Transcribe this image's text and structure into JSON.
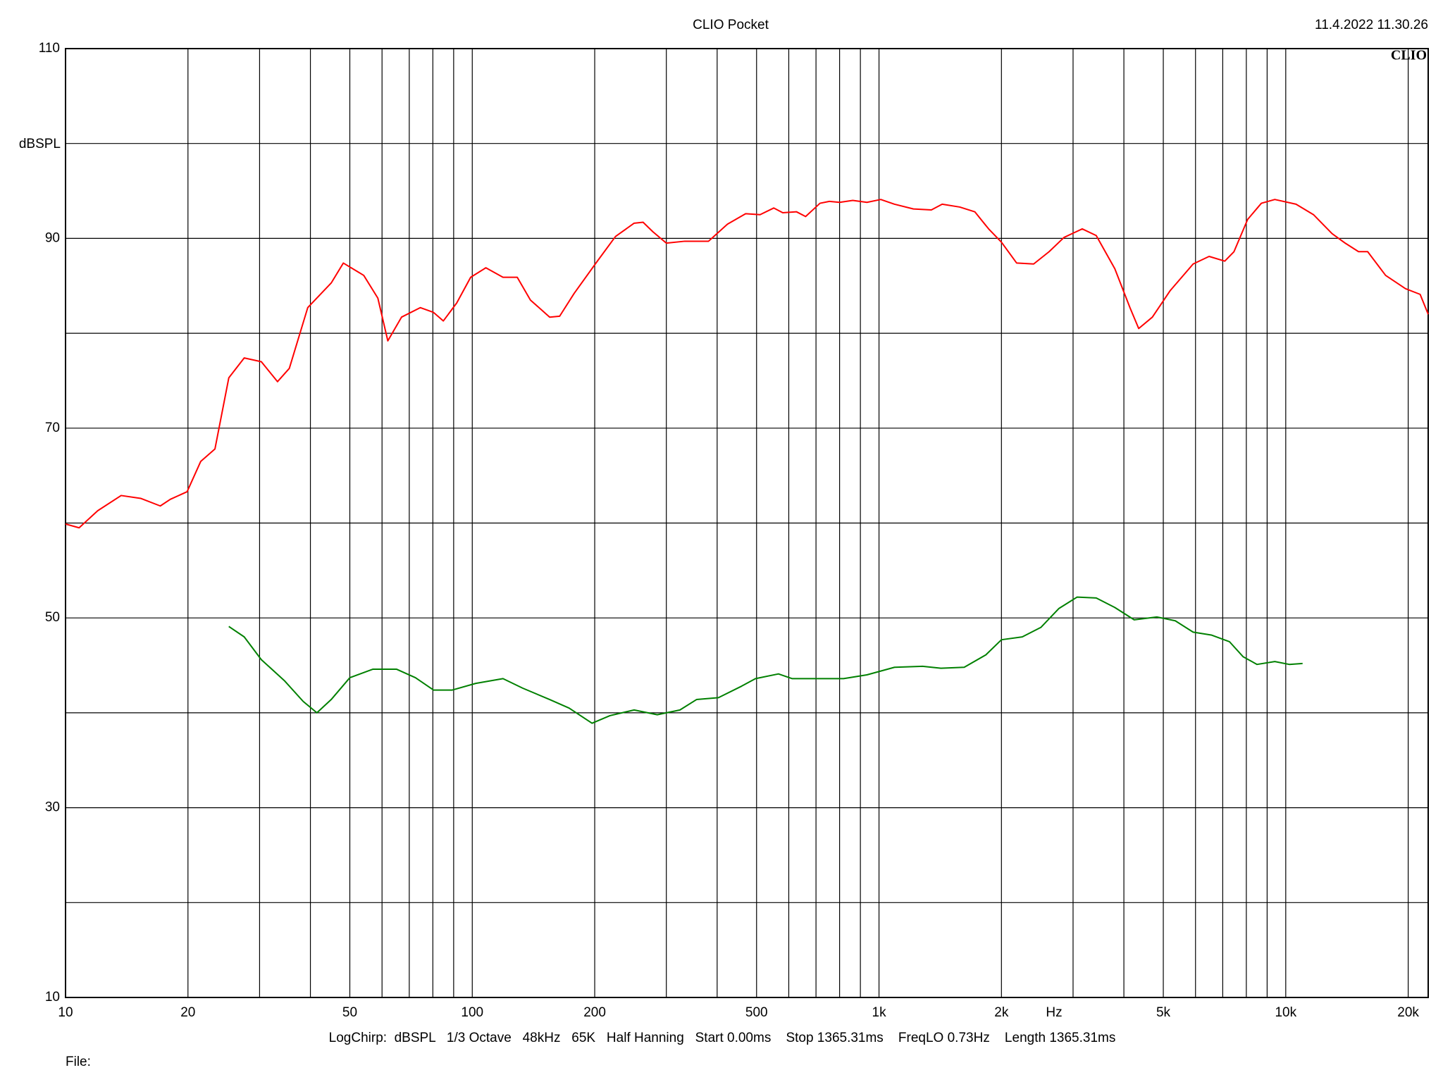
{
  "chart_data": {
    "type": "line",
    "title": "CLIO Pocket",
    "timestamp": "11.4.2022 11.30.26",
    "brand": "CLIO",
    "y_label": "dBSPL",
    "x_label": "Hz",
    "footer": "LogChirp:  dBSPL   1/3 Octave   48kHz   65K   Half Hanning   Start 0.00ms    Stop 1365.31ms    FreqLO 0.73Hz    Length 1365.31ms",
    "file_label": "File:",
    "log_x": true,
    "xlim": [
      10,
      22400
    ],
    "ylim": [
      10,
      110
    ],
    "xticks": [
      10,
      20,
      50,
      100,
      200,
      500,
      {
        "value": 1000,
        "label": "1k"
      },
      {
        "value": 2000,
        "label": "2k"
      },
      {
        "value": 5000,
        "label": "5k"
      },
      {
        "value": 10000,
        "label": "10k"
      },
      {
        "value": 20000,
        "label": "20k"
      }
    ],
    "xgrid": [
      30,
      40,
      60,
      70,
      80,
      90,
      300,
      400,
      600,
      700,
      800,
      900,
      3000,
      4000,
      6000,
      7000,
      8000,
      9000
    ],
    "yticks": [
      10,
      30,
      50,
      70,
      90,
      110
    ],
    "ygrid": [
      20,
      40,
      60,
      80,
      100
    ],
    "grid": true,
    "series": [
      {
        "color": "#ff0000",
        "x": [
          10,
          10.8,
          12.0,
          13.7,
          15.3,
          17.1,
          18.1,
          19.9,
          21.5,
          23.3,
          25.2,
          27.5,
          30.3,
          33.2,
          35.5,
          39.4,
          45.0,
          48.2,
          54.1,
          58.6,
          62.0,
          67.0,
          74.5,
          80.3,
          84.9,
          91.6,
          99.1,
          108,
          119,
          129,
          139,
          155,
          164,
          178,
          203,
          225,
          250,
          263,
          278,
          300,
          333,
          381,
          424,
          470,
          510,
          551,
          580,
          627,
          660,
          716,
          755,
          800,
          862,
          934,
          1010,
          1092,
          1215,
          1345,
          1430,
          1580,
          1720,
          1860,
          2000,
          2180,
          2400,
          2620,
          2850,
          3160,
          3420,
          3800,
          4140,
          4350,
          4700,
          5200,
          5920,
          6480,
          7080,
          7460,
          8060,
          8710,
          9400,
          10600,
          11700,
          13000,
          14000,
          15100,
          15900,
          17600,
          19700,
          21400,
          22400
        ],
        "values": [
          59.9,
          59.5,
          61.3,
          62.9,
          62.6,
          61.8,
          62.5,
          63.3,
          66.5,
          67.8,
          75.3,
          77.4,
          77.0,
          74.9,
          76.3,
          82.7,
          85.3,
          87.4,
          86.1,
          83.7,
          79.2,
          81.7,
          82.7,
          82.2,
          81.3,
          83.2,
          85.9,
          86.9,
          85.9,
          85.9,
          83.5,
          81.7,
          81.8,
          84.2,
          87.6,
          90.2,
          91.6,
          91.7,
          90.7,
          89.5,
          89.7,
          89.7,
          91.5,
          92.6,
          92.5,
          93.2,
          92.7,
          92.8,
          92.3,
          93.7,
          93.9,
          93.8,
          94.0,
          93.8,
          94.1,
          93.6,
          93.1,
          93.0,
          93.6,
          93.3,
          92.8,
          91.0,
          89.6,
          87.4,
          87.3,
          88.6,
          90.1,
          91.0,
          90.3,
          86.8,
          82.7,
          80.5,
          81.7,
          84.5,
          87.3,
          88.1,
          87.6,
          88.6,
          92.0,
          93.7,
          94.1,
          93.6,
          92.5,
          90.5,
          89.5,
          88.6,
          88.6,
          86.1,
          84.7,
          84.1,
          82.0
        ]
      },
      {
        "color": "#008000",
        "x": [
          25.2,
          27.5,
          30.3,
          34.5,
          38.4,
          41.5,
          45.0,
          50.0,
          57.0,
          65.1,
          72.5,
          80.3,
          89.3,
          102,
          119,
          133,
          155,
          173,
          197,
          218,
          250,
          285,
          324,
          356,
          403,
          459,
          497,
          566,
          612,
          716,
          818,
          934,
          1092,
          1280,
          1420,
          1620,
          1830,
          2000,
          2250,
          2500,
          2770,
          3070,
          3420,
          3800,
          4240,
          4820,
          5350,
          5920,
          6560,
          7270,
          7860,
          8500,
          9400,
          10200,
          11000
        ],
        "values": [
          49.1,
          48.0,
          45.6,
          43.4,
          41.2,
          40.0,
          41.4,
          43.7,
          44.6,
          44.6,
          43.7,
          42.4,
          42.4,
          43.1,
          43.6,
          42.6,
          41.4,
          40.5,
          38.9,
          39.7,
          40.3,
          39.8,
          40.3,
          41.4,
          41.6,
          42.8,
          43.6,
          44.1,
          43.6,
          43.6,
          43.6,
          44.0,
          44.8,
          44.9,
          44.7,
          44.8,
          46.1,
          47.7,
          48.0,
          49.0,
          51.0,
          52.2,
          52.1,
          51.1,
          49.8,
          50.1,
          49.7,
          48.5,
          48.2,
          47.5,
          45.9,
          45.1,
          45.4,
          45.1,
          45.2
        ]
      }
    ]
  }
}
